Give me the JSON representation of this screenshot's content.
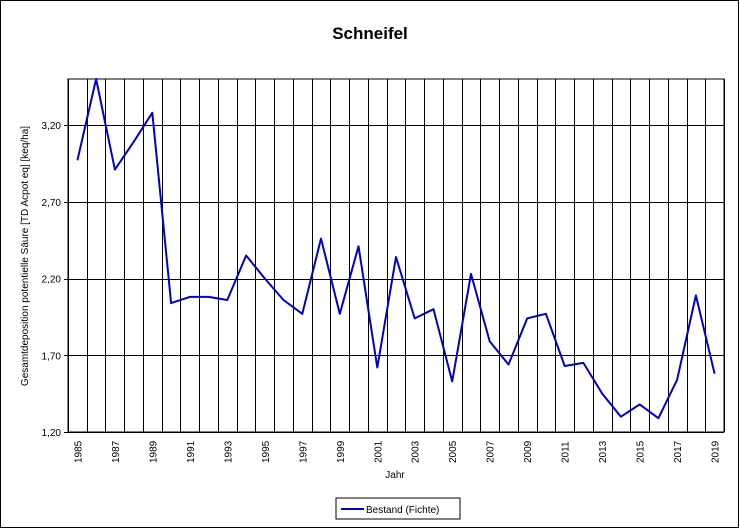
{
  "chart_data": {
    "type": "line",
    "title": "Schneifel",
    "xlabel": "Jahr",
    "ylabel": "Gesamtdeposition potentielle Säure [TD Acpot eq] [keq/ha]",
    "x": [
      1985,
      1986,
      1987,
      1988,
      1989,
      1990,
      1991,
      1992,
      1993,
      1994,
      1995,
      1996,
      1997,
      1998,
      1999,
      2000,
      2001,
      2002,
      2003,
      2004,
      2005,
      2006,
      2007,
      2008,
      2009,
      2010,
      2011,
      2012,
      2013,
      2014,
      2015,
      2016,
      2017,
      2018,
      2019
    ],
    "x_tick_labels": [
      "1985",
      "1987",
      "1989",
      "1991",
      "1993",
      "1995",
      "1997",
      "1999",
      "2001",
      "2003",
      "2005",
      "2007",
      "2009",
      "2011",
      "2013",
      "2015",
      "2017",
      "2019"
    ],
    "y_tick_labels": [
      "1,20",
      "1,70",
      "2,20",
      "2,70",
      "3,20"
    ],
    "y_ticks": [
      1.2,
      1.7,
      2.2,
      2.7,
      3.2
    ],
    "xlim": [
      1984.5,
      2019.5
    ],
    "ylim": [
      1.2,
      3.5
    ],
    "grid": true,
    "legend_position": "bottom-center",
    "series": [
      {
        "name": "Bestand (Fichte)",
        "color": "#0000cc",
        "values": [
          2.97,
          3.5,
          2.91,
          3.09,
          3.28,
          2.04,
          2.08,
          2.08,
          2.06,
          2.35,
          2.2,
          2.06,
          1.97,
          2.46,
          1.97,
          2.41,
          1.62,
          2.34,
          1.94,
          2.0,
          1.53,
          2.23,
          1.79,
          1.64,
          1.94,
          1.97,
          1.63,
          1.65,
          1.45,
          1.3,
          1.38,
          1.29,
          1.54,
          2.09,
          1.58
        ]
      }
    ]
  }
}
